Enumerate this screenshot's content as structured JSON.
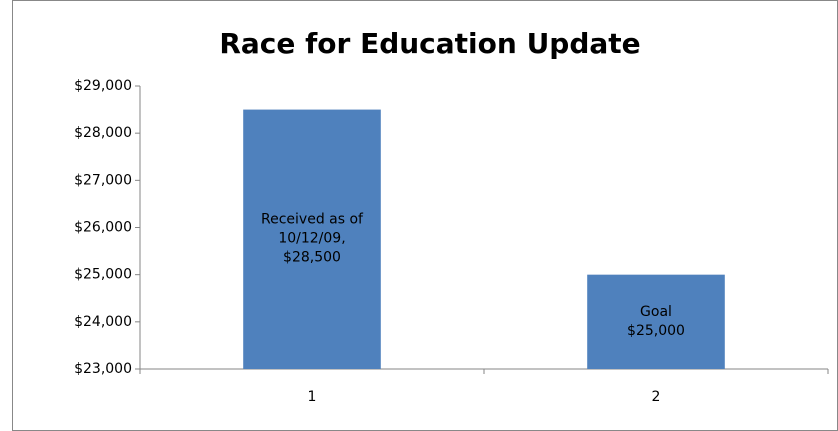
{
  "chart_data": {
    "type": "bar",
    "title": "Race for Education Update",
    "categories": [
      "1",
      "2"
    ],
    "values": [
      28500,
      25000
    ],
    "value_labels": [
      "Received as of\n10/12/09,\n$28,500",
      "Goal\n$25,000"
    ],
    "color": "#4f81bd",
    "ylim": [
      23000,
      29000
    ],
    "yticks": [
      {
        "value": 23000,
        "label": "$23,000"
      },
      {
        "value": 24000,
        "label": "$24,000"
      },
      {
        "value": 25000,
        "label": "$25,000"
      },
      {
        "value": 26000,
        "label": "$26,000"
      },
      {
        "value": 27000,
        "label": "$27,000"
      },
      {
        "value": 28000,
        "label": "$28,000"
      },
      {
        "value": 29000,
        "label": "$29,000"
      }
    ],
    "grid": false
  }
}
